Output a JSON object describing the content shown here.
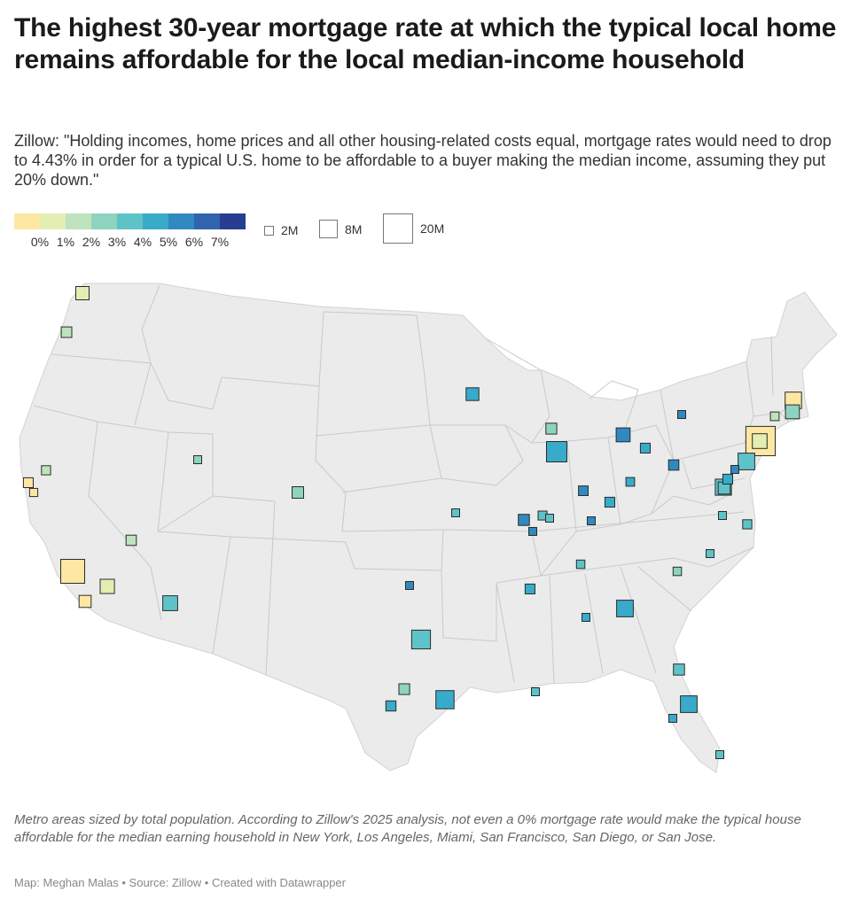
{
  "header": {
    "title": "The highest 30-year mortgage rate at which the typical local home remains affordable for the local median-income household",
    "subtitle": "Zillow: \"Holding incomes, home prices and all other housing-related costs equal, mortgage rates would need to drop to 4.43% in order for a typical U.S. home to be affordable to a buyer making the median income, assuming they put 20% down.\""
  },
  "legend": {
    "color_ticks": [
      "0%",
      "1%",
      "2%",
      "3%",
      "4%",
      "5%",
      "6%",
      "7%"
    ],
    "colors": [
      "#fde7a3",
      "#e2eeb2",
      "#bde4bd",
      "#8ed3c0",
      "#5ec3c9",
      "#37abc9",
      "#3189bf",
      "#3164ad",
      "#273d92"
    ],
    "size_labels": [
      "2M",
      "8M",
      "20M"
    ]
  },
  "chart_data": {
    "type": "symbol-map",
    "encoding": {
      "color": "highest affordable 30-year mortgage rate (%)",
      "size": "metro area total population"
    },
    "metros": [
      {
        "rate": 1.5,
        "pop_m": 4.0
      },
      {
        "rate": 2.7,
        "pop_m": 2.5
      },
      {
        "rate": 0.5,
        "pop_m": 2.2
      },
      {
        "rate": 0.5,
        "pop_m": 1.5
      },
      {
        "rate": 2.5,
        "pop_m": 1.9
      },
      {
        "rate": 0.3,
        "pop_m": 13.0
      },
      {
        "rate": 1.8,
        "pop_m": 4.6
      },
      {
        "rate": 0.3,
        "pop_m": 3.3
      },
      {
        "rate": 2.8,
        "pop_m": 2.4
      },
      {
        "rate": 4.5,
        "pop_m": 5.0
      },
      {
        "rate": 3.0,
        "pop_m": 1.3
      },
      {
        "rate": 3.5,
        "pop_m": 3.0
      },
      {
        "rate": 5.2,
        "pop_m": 3.7
      },
      {
        "rate": 6.5,
        "pop_m": 1.4
      },
      {
        "rate": 4.5,
        "pop_m": 8.0
      },
      {
        "rate": 3.0,
        "pop_m": 2.6
      },
      {
        "rate": 5.5,
        "pop_m": 2.3
      },
      {
        "rate": 5.5,
        "pop_m": 7.5
      },
      {
        "rate": 4.2,
        "pop_m": 1.3
      },
      {
        "rate": 5.5,
        "pop_m": 2.2
      },
      {
        "rate": 6.8,
        "pop_m": 2.8
      },
      {
        "rate": 4.0,
        "pop_m": 1.6
      },
      {
        "rate": 5.3,
        "pop_m": 1.2
      },
      {
        "rate": 6.5,
        "pop_m": 1.1
      },
      {
        "rate": 5.5,
        "pop_m": 6.3
      },
      {
        "rate": 3.5,
        "pop_m": 1.6
      },
      {
        "rate": 4.0,
        "pop_m": 1.2
      },
      {
        "rate": 5.8,
        "pop_m": 9.4
      },
      {
        "rate": 6.5,
        "pop_m": 2.1
      },
      {
        "rate": 5.6,
        "pop_m": 2.2
      },
      {
        "rate": 5.2,
        "pop_m": 1.7
      },
      {
        "rate": 6.8,
        "pop_m": 4.4
      },
      {
        "rate": 5.5,
        "pop_m": 2.2
      },
      {
        "rate": 6.5,
        "pop_m": 1.1
      },
      {
        "rate": 6.8,
        "pop_m": 2.4
      },
      {
        "rate": 4.5,
        "pop_m": 6.3
      },
      {
        "rate": 1.5,
        "pop_m": 4.9
      },
      {
        "rate": 2.5,
        "pop_m": 1.7
      },
      {
        "rate": 0.5,
        "pop_m": 19.5
      },
      {
        "rate": 4.5,
        "pop_m": 3.3
      },
      {
        "rate": 5.5,
        "pop_m": 2.2
      },
      {
        "rate": 4.5,
        "pop_m": 1.3
      },
      {
        "rate": 4.5,
        "pop_m": 1.9
      },
      {
        "rate": 4.5,
        "pop_m": 1.3
      },
      {
        "rate": 4.0,
        "pop_m": 2.8
      },
      {
        "rate": 5.8,
        "pop_m": 1.3
      },
      {
        "rate": 5.8,
        "pop_m": 6.3
      },
      {
        "rate": 4.5,
        "pop_m": 1.1
      },
      {
        "rate": 3.0,
        "pop_m": 2.7
      },
      {
        "rate": 0.3,
        "pop_m": 6.1
      },
      {
        "rate": 3.0,
        "pop_m": 4.4
      },
      {
        "rate": 6.2,
        "pop_m": 1.3
      },
      {
        "rate": 4.5,
        "pop_m": 1.8
      },
      {
        "rate": 4.5,
        "pop_m": 1.0
      },
      {
        "rate": 4.5,
        "pop_m": 5.9
      },
      {
        "rate": 6.0,
        "pop_m": 1.2
      }
    ]
  },
  "footer": {
    "note": "Metro areas sized by total population. According to Zillow's 2025 analysis, not even a 0% mortgage rate would make the typical house affordable for the median earning household in New York, Los Angeles, Miami, San Francisco, San Diego, or San Jose.",
    "byline": "Map: Meghan Malas • Source: Zillow • Created with Datawrapper"
  }
}
